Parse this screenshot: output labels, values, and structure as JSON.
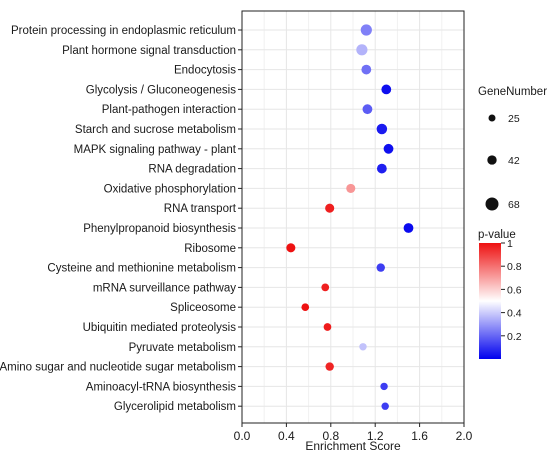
{
  "chart_data": {
    "type": "scatter",
    "xlabel": "Enrichment Score",
    "ylabel": "",
    "xlim": [
      0.0,
      2.0
    ],
    "xticks": [
      0.0,
      0.4,
      0.8,
      1.2,
      1.6,
      2.0
    ],
    "xtick_labels": [
      "0.0",
      "0.4",
      "0.8",
      "1.2",
      "1.6",
      "2.0"
    ],
    "grid": true,
    "legend_size": {
      "title": "GeneNumber",
      "placement": "right",
      "entries": [
        {
          "label": "25",
          "value": 25
        },
        {
          "label": "42",
          "value": 42
        },
        {
          "label": "68",
          "value": 68
        }
      ]
    },
    "legend_color": {
      "title": "p-value",
      "placement": "right",
      "ticks": [
        {
          "label": "1",
          "value": 1.0
        },
        {
          "label": "0.8",
          "value": 0.8
        },
        {
          "label": "0.6",
          "value": 0.6
        },
        {
          "label": "0.4",
          "value": 0.4
        },
        {
          "label": "0.2",
          "value": 0.2
        }
      ],
      "colors": {
        "high": "#ee1111",
        "mid": "#ffffff",
        "low": "#0000ee"
      },
      "range": [
        0.0,
        1.0
      ]
    },
    "points": [
      {
        "pathway": "Protein processing in endoplasmic reticulum",
        "enrichment": 1.12,
        "pvalue": 0.25,
        "genes": 55
      },
      {
        "pathway": "Plant hormone signal transduction",
        "enrichment": 1.08,
        "pvalue": 0.35,
        "genes": 55
      },
      {
        "pathway": "Endocytosis",
        "enrichment": 1.12,
        "pvalue": 0.22,
        "genes": 45
      },
      {
        "pathway": "Glycolysis / Gluconeogenesis",
        "enrichment": 1.3,
        "pvalue": 0.03,
        "genes": 45
      },
      {
        "pathway": "Plant-pathogen interaction",
        "enrichment": 1.13,
        "pvalue": 0.18,
        "genes": 45
      },
      {
        "pathway": "Starch and sucrose metabolism",
        "enrichment": 1.26,
        "pvalue": 0.05,
        "genes": 50
      },
      {
        "pathway": "MAPK signaling pathway - plant",
        "enrichment": 1.32,
        "pvalue": 0.03,
        "genes": 45
      },
      {
        "pathway": "RNA degradation",
        "enrichment": 1.26,
        "pvalue": 0.06,
        "genes": 45
      },
      {
        "pathway": "Oxidative phosphorylation",
        "enrichment": 0.98,
        "pvalue": 0.72,
        "genes": 40
      },
      {
        "pathway": "RNA transport",
        "enrichment": 0.79,
        "pvalue": 0.97,
        "genes": 40
      },
      {
        "pathway": "Phenylpropanoid biosynthesis",
        "enrichment": 1.5,
        "pvalue": 0.02,
        "genes": 45
      },
      {
        "pathway": "Ribosome",
        "enrichment": 0.44,
        "pvalue": 1.0,
        "genes": 40
      },
      {
        "pathway": "Cysteine and methionine metabolism",
        "enrichment": 1.25,
        "pvalue": 0.12,
        "genes": 35
      },
      {
        "pathway": "mRNA surveillance pathway",
        "enrichment": 0.75,
        "pvalue": 0.97,
        "genes": 30
      },
      {
        "pathway": "Spliceosome",
        "enrichment": 0.57,
        "pvalue": 1.0,
        "genes": 30
      },
      {
        "pathway": "Ubiquitin mediated proteolysis",
        "enrichment": 0.77,
        "pvalue": 0.98,
        "genes": 30
      },
      {
        "pathway": "Pyruvate metabolism",
        "enrichment": 1.09,
        "pvalue": 0.38,
        "genes": 28
      },
      {
        "pathway": "Amino sugar and nucleotide sugar metabolism",
        "enrichment": 0.79,
        "pvalue": 0.96,
        "genes": 35
      },
      {
        "pathway": "Aminoacyl-tRNA biosynthesis",
        "enrichment": 1.28,
        "pvalue": 0.12,
        "genes": 28
      },
      {
        "pathway": "Glycerolipid metabolism",
        "enrichment": 1.29,
        "pvalue": 0.12,
        "genes": 28
      }
    ]
  }
}
